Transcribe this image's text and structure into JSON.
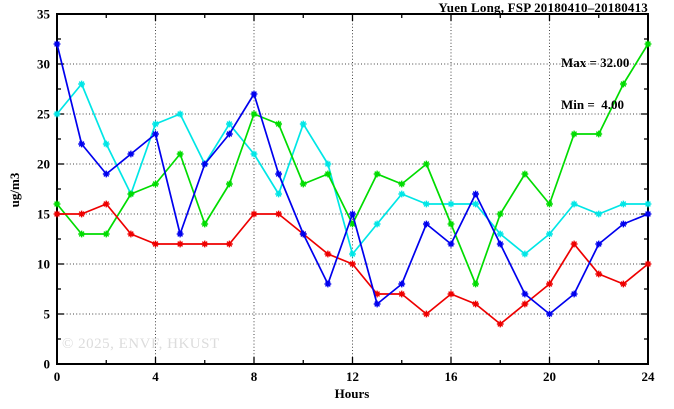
{
  "figure": {
    "title": "Yuen Long, FSP 20180410–20180413",
    "annotation": {
      "max": "Max = 32.00",
      "min": "Min =  4.00"
    },
    "watermark": "© 2025, ENVF, HKUST"
  },
  "chart_data": {
    "type": "line",
    "title": "Yuen Long, FSP 20180410–20180413",
    "xlabel": "Hours",
    "ylabel": "ug/m3",
    "xlim": [
      0,
      24
    ],
    "ylim": [
      0,
      35
    ],
    "grid": true,
    "legend": "none",
    "stats": {
      "max": 32.0,
      "min": 4.0
    },
    "x": [
      0,
      1,
      2,
      3,
      4,
      5,
      6,
      7,
      8,
      9,
      10,
      11,
      12,
      13,
      14,
      15,
      16,
      17,
      18,
      19,
      20,
      21,
      22,
      23,
      24
    ],
    "series": [
      {
        "name": "cyan",
        "color": "#00e6e6",
        "values": [
          25,
          28,
          22,
          17,
          24,
          25,
          20,
          24,
          21,
          17,
          24,
          20,
          11,
          14,
          17,
          16,
          16,
          16,
          13,
          11,
          13,
          16,
          15,
          16,
          16
        ]
      },
      {
        "name": "green",
        "color": "#00dc00",
        "values": [
          16,
          13,
          13,
          17,
          18,
          21,
          14,
          18,
          25,
          24,
          18,
          19,
          14,
          19,
          18,
          20,
          14,
          8,
          15,
          19,
          16,
          23,
          23,
          28,
          32
        ]
      },
      {
        "name": "red",
        "color": "#ee0000",
        "values": [
          15,
          15,
          16,
          13,
          12,
          12,
          12,
          12,
          15,
          15,
          13,
          11,
          10,
          7,
          7,
          5,
          7,
          6,
          4,
          6,
          8,
          12,
          9,
          8,
          10
        ]
      },
      {
        "name": "blue",
        "color": "#0000ee",
        "values": [
          32,
          22,
          19,
          21,
          23,
          13,
          20,
          23,
          27,
          19,
          13,
          8,
          15,
          6,
          8,
          14,
          12,
          17,
          12,
          7,
          5,
          7,
          12,
          14,
          15
        ]
      }
    ],
    "xticks": [
      0,
      4,
      8,
      12,
      16,
      20,
      24
    ],
    "xticks_minor": [
      2,
      6,
      10,
      14,
      18,
      22
    ],
    "yticks": [
      0,
      5,
      10,
      15,
      20,
      25,
      30,
      35
    ],
    "yticks_minor": [
      2.5,
      7.5,
      12.5,
      17.5,
      22.5,
      27.5,
      32.5
    ],
    "grid_x": [
      4,
      8,
      12,
      16,
      20
    ],
    "grid_y": [
      5,
      10,
      15,
      20,
      25,
      30
    ]
  }
}
